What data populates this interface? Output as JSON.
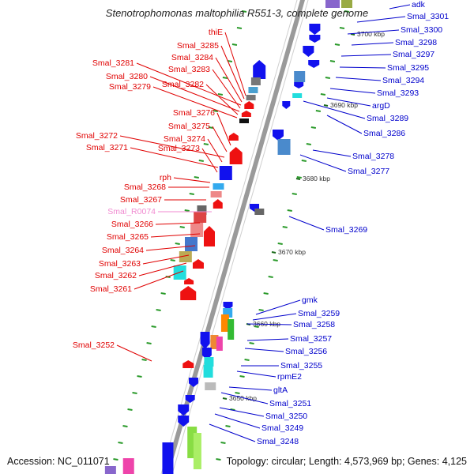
{
  "title": "Stenotrophomonas maltophilia R551-3, complete genome",
  "footer": {
    "accession": "Accession: NC_011071",
    "summary": "Topology: circular; Length: 4,573,969 bp; Genes: 4,125"
  },
  "colors": {
    "reverse_label": "#e00000",
    "forward_label": "#0000cc",
    "rna_label": "#f08ad0",
    "backbone": "#9a9a9a",
    "tick": "#2a9a2a"
  },
  "kbp_labels": [
    "3700 kbp",
    "3690 kbp",
    "3680 kbp",
    "3670 kbp",
    "3660 kbp",
    "3650 kbp"
  ],
  "left_labels": [
    "thiE",
    "Smal_3285",
    "Smal_3284",
    "Smal_3281",
    "Smal_3283",
    "Smal_3280",
    "Smal_3282",
    "Smal_3279",
    "Smal_3276",
    "Smal_3275",
    "Smal_3272",
    "Smal_3274",
    "Smal_3271",
    "Smal_3273",
    "rph",
    "Smal_3268",
    "Smal_3267",
    "Smal_R0074",
    "Smal_3266",
    "Smal_3265",
    "Smal_3264",
    "Smal_3263",
    "Smal_3262",
    "Smal_3261",
    "Smal_3252"
  ],
  "right_labels": [
    "adk",
    "Smal_3301",
    "Smal_3300",
    "Smal_3298",
    "Smal_3297",
    "Smal_3295",
    "Smal_3294",
    "Smal_3293",
    "argD",
    "Smal_3289",
    "Smal_3286",
    "Smal_3278",
    "Smal_3277",
    "Smal_3269",
    "gmk",
    "Smal_3259",
    "Smal_3258",
    "Smal_3257",
    "Smal_3256",
    "Smal_3255",
    "rpmE2",
    "gltA",
    "Smal_3251",
    "Smal_3250",
    "Smal_3249",
    "Smal_3248"
  ]
}
